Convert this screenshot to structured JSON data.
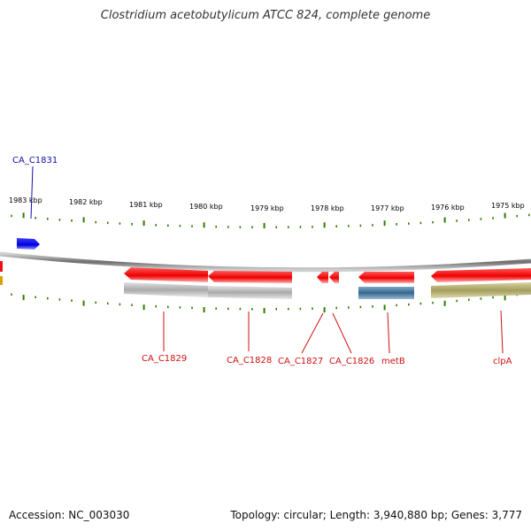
{
  "title": "Clostridium acetobutylicum ATCC 824, complete genome",
  "accession": "Accession: NC_003030",
  "summary": "Topology: circular; Length: 3,940,880 bp; Genes: 3,777",
  "colors": {
    "backbone": "#8a8a8a",
    "tick": "#2e7d00",
    "forward_gene": "#1a1aee",
    "reverse_gene": "#ee1111",
    "label_forward": "#1111aa",
    "label_reverse": "#cc1111",
    "track_gray": "#bdbdbd",
    "track_blue": "#3d6f9a",
    "track_olive": "#aaa466"
  },
  "ruler": {
    "labels": [
      "1983 kbp",
      "1982 kbp",
      "1981 kbp",
      "1980 kbp",
      "1979 kbp",
      "1978 kbp",
      "1977 kbp",
      "1976 kbp",
      "1975 kbp"
    ]
  },
  "genes": {
    "forward": [
      {
        "name": "CA_C1831"
      }
    ],
    "reverse": [
      {
        "name": "CA_C1829"
      },
      {
        "name": "CA_C1828"
      },
      {
        "name": "CA_C1827"
      },
      {
        "name": "CA_C1826"
      },
      {
        "name": "metB"
      },
      {
        "name": "clpA"
      }
    ]
  }
}
